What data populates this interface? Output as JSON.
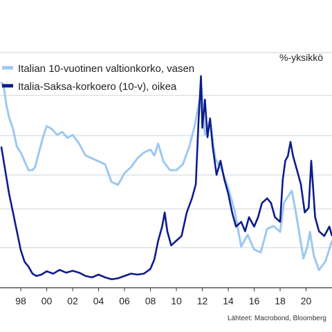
{
  "chart_data": {
    "type": "line",
    "unit_label": "%-yksikkö",
    "source": "Lähteet: Macrobond, Bloomberg",
    "x_ticks": [
      "98",
      "00",
      "02",
      "04",
      "06",
      "08",
      "10",
      "12",
      "14",
      "16",
      "18",
      "20"
    ],
    "xlim": [
      1996.4,
      2022.0
    ],
    "grid": true,
    "legend_position": "top-left",
    "series": [
      {
        "name": "Italian 10-vuotinen valtionkorko, vasen",
        "color": "#9cc8f2",
        "ylim": [
          0,
          8
        ],
        "x": [
          1996.5,
          1996.7,
          1996.9,
          1997.1,
          1997.4,
          1997.7,
          1998.0,
          1998.3,
          1998.6,
          1998.9,
          1999.1,
          1999.4,
          1999.7,
          2000.0,
          2000.4,
          2000.8,
          2001.2,
          2001.6,
          2002.0,
          2002.5,
          2003.0,
          2003.5,
          2004.0,
          2004.5,
          2005.0,
          2005.5,
          2006.0,
          2006.5,
          2007.0,
          2007.5,
          2008.0,
          2008.3,
          2008.6,
          2009.0,
          2009.5,
          2010.0,
          2010.5,
          2011.0,
          2011.4,
          2011.8,
          2011.95,
          2012.2,
          2012.6,
          2013.0,
          2013.5,
          2014.0,
          2014.5,
          2015.0,
          2015.5,
          2016.0,
          2016.5,
          2017.0,
          2017.5,
          2018.0,
          2018.3,
          2018.6,
          2018.9,
          2019.2,
          2019.5,
          2019.8,
          2020.1,
          2020.3,
          2020.6,
          2021.0,
          2021.5,
          2022.0
        ],
        "y": [
          7.0,
          6.8,
          6.2,
          5.8,
          5.4,
          4.8,
          4.6,
          4.3,
          4.0,
          4.0,
          4.1,
          4.6,
          5.1,
          5.5,
          5.4,
          5.2,
          5.3,
          5.1,
          5.2,
          4.9,
          4.5,
          4.4,
          4.3,
          4.2,
          3.6,
          3.5,
          3.9,
          4.1,
          4.4,
          4.6,
          4.7,
          4.5,
          4.9,
          4.3,
          4.0,
          4.0,
          4.2,
          4.8,
          5.5,
          6.4,
          6.8,
          5.2,
          5.7,
          4.4,
          4.0,
          3.4,
          2.6,
          1.4,
          1.8,
          1.3,
          1.2,
          2.0,
          2.1,
          1.9,
          2.9,
          3.1,
          3.3,
          2.6,
          1.8,
          1.0,
          1.4,
          1.9,
          1.1,
          0.6,
          0.9,
          1.6
        ]
      },
      {
        "name": "Italia-Saksa-korkoero (10-v), oikea",
        "color": "#0c1c8c",
        "ylim": [
          0,
          5
        ],
        "x": [
          1996.5,
          1996.8,
          1997.1,
          1997.4,
          1997.7,
          1998.0,
          1998.3,
          1998.6,
          1998.9,
          1999.2,
          1999.6,
          2000.0,
          2000.5,
          2001.0,
          2001.5,
          2002.0,
          2002.5,
          2003.0,
          2003.5,
          2004.0,
          2004.5,
          2005.0,
          2005.5,
          2006.0,
          2006.5,
          2007.0,
          2007.5,
          2008.0,
          2008.3,
          2008.6,
          2008.9,
          2009.1,
          2009.3,
          2009.6,
          2010.0,
          2010.4,
          2010.8,
          2011.2,
          2011.5,
          2011.7,
          2011.9,
          2012.0,
          2012.2,
          2012.4,
          2012.6,
          2012.8,
          2013.1,
          2013.4,
          2013.7,
          2014.0,
          2014.3,
          2014.6,
          2015.0,
          2015.3,
          2015.6,
          2016.0,
          2016.3,
          2016.6,
          2017.0,
          2017.3,
          2017.6,
          2018.0,
          2018.2,
          2018.4,
          2018.6,
          2018.8,
          2019.0,
          2019.3,
          2019.6,
          2019.9,
          2020.2,
          2020.4,
          2020.7,
          2021.0,
          2021.4,
          2021.8,
          2022.0
        ],
        "y": [
          3.0,
          2.5,
          2.0,
          1.6,
          1.2,
          0.8,
          0.55,
          0.45,
          0.3,
          0.25,
          0.28,
          0.35,
          0.3,
          0.38,
          0.32,
          0.36,
          0.32,
          0.25,
          0.22,
          0.28,
          0.22,
          0.18,
          0.2,
          0.25,
          0.3,
          0.28,
          0.3,
          0.4,
          0.6,
          1.0,
          1.3,
          1.6,
          1.2,
          0.9,
          1.0,
          1.1,
          1.6,
          1.9,
          2.2,
          3.5,
          4.5,
          3.4,
          4.0,
          3.2,
          3.6,
          3.0,
          2.4,
          2.7,
          2.3,
          2.0,
          1.6,
          1.3,
          1.4,
          1.2,
          1.5,
          1.3,
          1.5,
          1.8,
          1.9,
          1.8,
          1.5,
          1.4,
          2.3,
          2.7,
          2.8,
          3.1,
          2.8,
          2.5,
          2.2,
          1.6,
          1.7,
          2.7,
          1.5,
          1.2,
          1.1,
          1.3,
          1.1
        ]
      }
    ]
  }
}
